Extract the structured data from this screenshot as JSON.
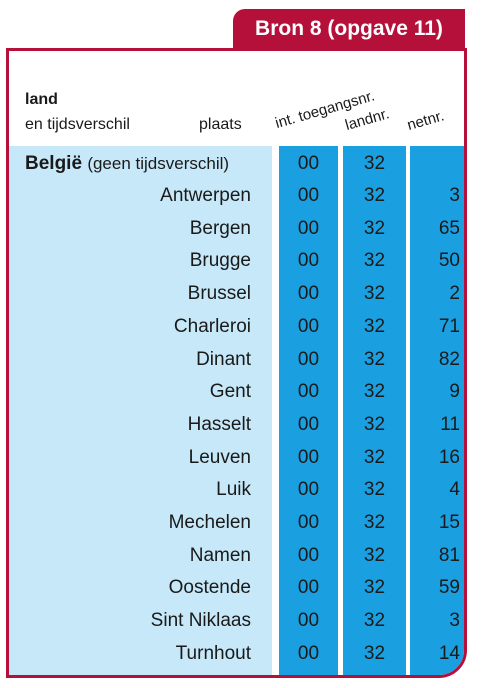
{
  "title": "Bron 8 (opgave 11)",
  "headers": {
    "land": "land",
    "tijdsverschil": "en tijdsverschil",
    "plaats": "plaats",
    "toegang": "int. toegangsnr.",
    "landnr": "landnr.",
    "netnr": "netnr."
  },
  "country": {
    "name": "België",
    "note": "(geen tijdsverschil)",
    "toegang": "00",
    "landnr": "32",
    "netnr": ""
  },
  "rows": [
    {
      "plaats": "Antwerpen",
      "toegang": "00",
      "landnr": "32",
      "netnr": "3"
    },
    {
      "plaats": "Bergen",
      "toegang": "00",
      "landnr": "32",
      "netnr": "65"
    },
    {
      "plaats": "Brugge",
      "toegang": "00",
      "landnr": "32",
      "netnr": "50"
    },
    {
      "plaats": "Brussel",
      "toegang": "00",
      "landnr": "32",
      "netnr": "2"
    },
    {
      "plaats": "Charleroi",
      "toegang": "00",
      "landnr": "32",
      "netnr": "71"
    },
    {
      "plaats": "Dinant",
      "toegang": "00",
      "landnr": "32",
      "netnr": "82"
    },
    {
      "plaats": "Gent",
      "toegang": "00",
      "landnr": "32",
      "netnr": "9"
    },
    {
      "plaats": "Hasselt",
      "toegang": "00",
      "landnr": "32",
      "netnr": "11"
    },
    {
      "plaats": "Leuven",
      "toegang": "00",
      "landnr": "32",
      "netnr": "16"
    },
    {
      "plaats": "Luik",
      "toegang": "00",
      "landnr": "32",
      "netnr": "4"
    },
    {
      "plaats": "Mechelen",
      "toegang": "00",
      "landnr": "32",
      "netnr": "15"
    },
    {
      "plaats": "Namen",
      "toegang": "00",
      "landnr": "32",
      "netnr": "81"
    },
    {
      "plaats": "Oostende",
      "toegang": "00",
      "landnr": "32",
      "netnr": "59"
    },
    {
      "plaats": "Sint Niklaas",
      "toegang": "00",
      "landnr": "32",
      "netnr": "3"
    },
    {
      "plaats": "Turnhout",
      "toegang": "00",
      "landnr": "32",
      "netnr": "14"
    }
  ],
  "colors": {
    "accent": "#b5103a",
    "column_blue": "#1a9fe0",
    "pane_light": "#c6e8f8"
  }
}
